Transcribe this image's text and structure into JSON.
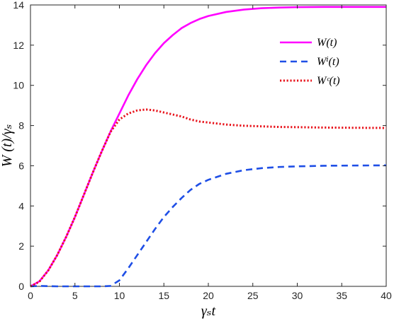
{
  "chart_data": {
    "type": "line",
    "xlabel": "γₛt",
    "ylabel": "W (t)/γₛ",
    "xlim": [
      0,
      40
    ],
    "ylim": [
      0,
      14
    ],
    "xticks": [
      0,
      5,
      10,
      15,
      20,
      25,
      30,
      35,
      40
    ],
    "yticks": [
      0,
      2,
      4,
      6,
      8,
      10,
      12,
      14
    ],
    "grid": false,
    "legend_position": "top-right",
    "series": [
      {
        "name": "W(t)",
        "color": "#ff00ff",
        "style": "solid",
        "x": [
          0,
          1,
          2,
          3,
          4,
          5,
          6,
          7,
          8,
          9,
          10,
          11,
          12,
          13,
          14,
          15,
          16,
          17,
          18,
          19,
          20,
          22,
          24,
          26,
          28,
          30,
          33,
          36,
          40
        ],
        "y": [
          0,
          0.25,
          0.8,
          1.55,
          2.45,
          3.45,
          4.55,
          5.65,
          6.7,
          7.7,
          8.6,
          9.5,
          10.3,
          11.0,
          11.6,
          12.1,
          12.5,
          12.85,
          13.1,
          13.3,
          13.45,
          13.65,
          13.77,
          13.84,
          13.87,
          13.89,
          13.9,
          13.9,
          13.9
        ]
      },
      {
        "name": "Wⁱ(t)",
        "color": "#1f4fe6",
        "style": "dashed",
        "x": [
          0,
          1,
          2,
          3,
          4,
          5,
          6,
          7,
          8,
          9,
          10,
          11,
          12,
          13,
          14,
          15,
          16,
          17,
          18,
          19,
          20,
          22,
          24,
          26,
          28,
          30,
          33,
          36,
          40
        ],
        "y": [
          0,
          0.02,
          0.01,
          0,
          0,
          0,
          0,
          0,
          0,
          0.02,
          0.3,
          0.9,
          1.55,
          2.2,
          2.85,
          3.45,
          3.95,
          4.4,
          4.8,
          5.1,
          5.3,
          5.6,
          5.78,
          5.88,
          5.94,
          5.97,
          6.0,
          6.01,
          6.02
        ]
      },
      {
        "name": "Wᶜ(t)",
        "color": "#e8141c",
        "style": "dotted",
        "x": [
          0,
          1,
          2,
          3,
          4,
          5,
          6,
          7,
          8,
          9,
          10,
          11,
          12,
          13,
          14,
          15,
          16,
          17,
          18,
          19,
          20,
          22,
          24,
          26,
          28,
          30,
          33,
          36,
          40
        ],
        "y": [
          0,
          0.23,
          0.79,
          1.55,
          2.45,
          3.45,
          4.55,
          5.65,
          6.7,
          7.68,
          8.3,
          8.6,
          8.75,
          8.8,
          8.75,
          8.65,
          8.55,
          8.45,
          8.3,
          8.2,
          8.15,
          8.05,
          7.99,
          7.96,
          7.93,
          7.92,
          7.9,
          7.89,
          7.88
        ]
      }
    ]
  }
}
